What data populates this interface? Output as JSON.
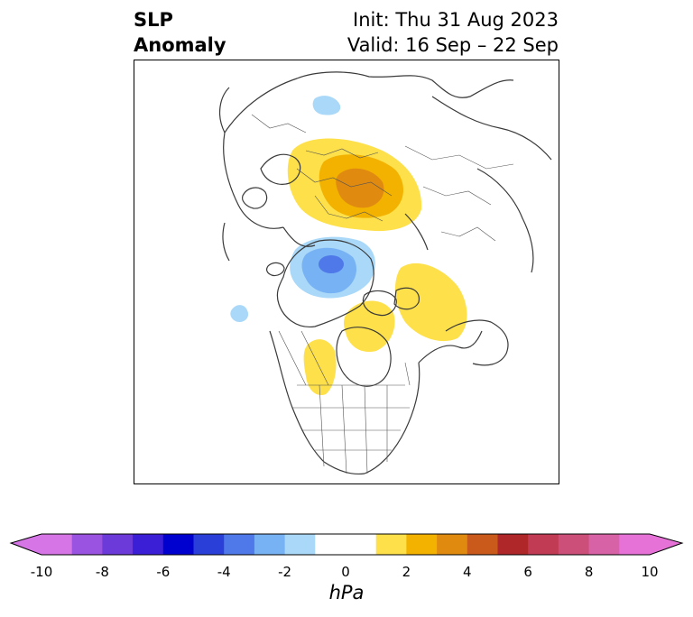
{
  "title": {
    "left_line1": "SLP",
    "left_line2": "Anomaly",
    "init": "Init: Thu 31 Aug 2023",
    "valid": "Valid: 16 Sep – 22 Sep"
  },
  "colorbar": {
    "unit": "hPa",
    "min": -10,
    "max": 10,
    "ticks": [
      "-10",
      "-8",
      "-6",
      "-4",
      "-2",
      "0",
      "2",
      "4",
      "6",
      "8",
      "10"
    ],
    "colors": [
      "#d575e6",
      "#9a52e0",
      "#6b3ad8",
      "#3a1fd6",
      "#0000cf",
      "#2a3fd8",
      "#4f78e8",
      "#77b2f4",
      "#a9d8f8",
      "#ffffff",
      "#ffffff",
      "#fde04a",
      "#f3b200",
      "#e08a10",
      "#c95a1c",
      "#b0272a",
      "#c23b55",
      "#cc4f7a",
      "#d862a6",
      "#e672d8"
    ],
    "extend_low": "#d575e6",
    "extend_high": "#e672d8"
  },
  "map": {
    "projection": "north-polar-stereographic",
    "features": [
      "coastlines",
      "country-borders",
      "state-borders"
    ],
    "anomalies": [
      {
        "region": "Scandinavia / Northwest Russia",
        "sign": "positive",
        "peak_hpa": 4
      },
      {
        "region": "Greenland Sea / Svalbard",
        "sign": "negative",
        "peak_hpa": -4
      },
      {
        "region": "Northwest Russia (small)",
        "sign": "negative",
        "peak_hpa": -1
      },
      {
        "region": "North Pacific / Alaska",
        "sign": "positive",
        "peak_hpa": 1
      },
      {
        "region": "Central Canada",
        "sign": "positive",
        "peak_hpa": 1
      },
      {
        "region": "Western Canada",
        "sign": "positive",
        "peak_hpa": 1
      },
      {
        "region": "North Atlantic (small)",
        "sign": "negative",
        "peak_hpa": -1
      }
    ]
  }
}
